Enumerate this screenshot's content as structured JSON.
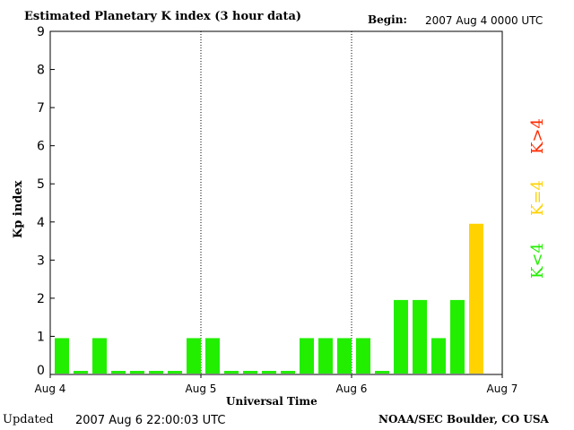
{
  "header": {
    "title": "Estimated Planetary K index (3 hour data)",
    "begin_label": "Begin:",
    "begin_value": "2007 Aug 4 0000 UTC"
  },
  "footer": {
    "updated_label": "Updated",
    "updated_value": "2007 Aug  6 22:00:03 UTC",
    "credit": "NOAA/SEC Boulder, CO USA"
  },
  "legend": {
    "high": {
      "label": "K>4",
      "color": "#ff2a00"
    },
    "equal": {
      "label": "K=4",
      "color": "#ffd200"
    },
    "low": {
      "label": "K<4",
      "color": "#22ee00"
    }
  },
  "chart_data": {
    "type": "bar",
    "title": "Estimated Planetary K index (3 hour data)",
    "xlabel": "Universal Time",
    "ylabel": "Kp index",
    "ylim": [
      0,
      9
    ],
    "yticks": [
      0,
      1,
      2,
      3,
      4,
      5,
      6,
      7,
      8,
      9
    ],
    "xticks": [
      "Aug 4",
      "Aug 5",
      "Aug 6",
      "Aug 7"
    ],
    "interval_hours": 3,
    "values": [
      1,
      0,
      1,
      0,
      0,
      0,
      0,
      1,
      1,
      0,
      0,
      0,
      0,
      1,
      1,
      1,
      1,
      0,
      2,
      2,
      1,
      2,
      4
    ],
    "colors": {
      "low": "#22ee00",
      "equal": "#ffd200",
      "high": "#ff2a00"
    },
    "grid": "dotted vertical day separators"
  }
}
